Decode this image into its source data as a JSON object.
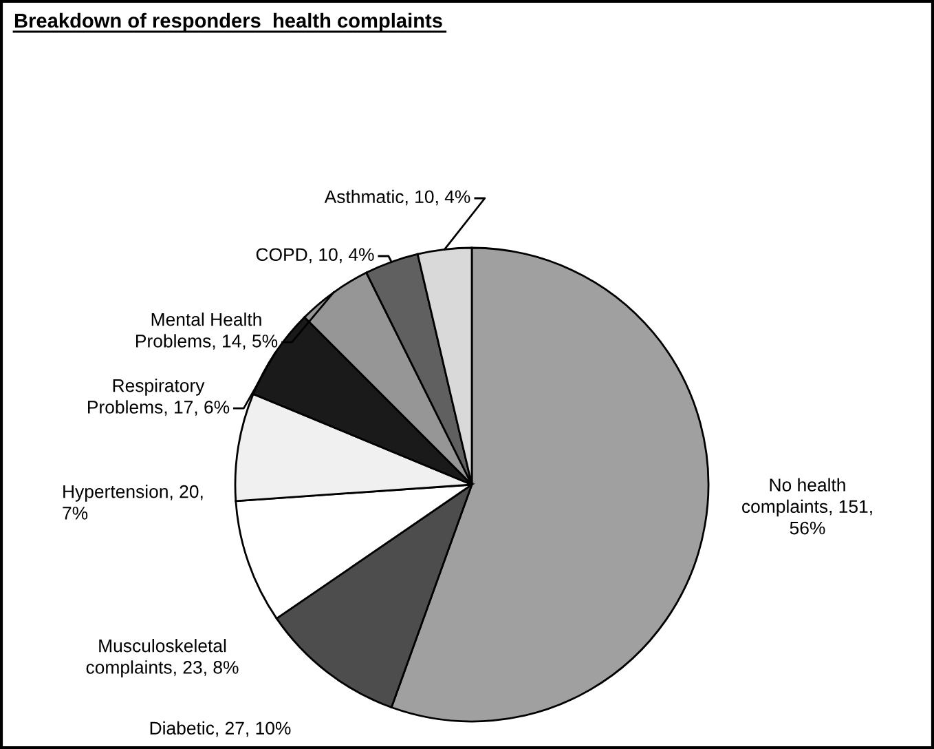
{
  "chart_data": {
    "type": "pie",
    "title": "Breakdown of responders  health complaints",
    "categories": [
      "No health\ncomplaints",
      "Diabetic",
      "Musculoskeletal\ncomplaints",
      "Hypertension",
      "Respiratory\nProblems",
      "Mental Health\nProblems",
      "COPD",
      "Asthmatic"
    ],
    "values": [
      151,
      27,
      23,
      20,
      17,
      14,
      10,
      10
    ],
    "value_labels": [
      "151,\n56%",
      "27, 10%",
      "23, 8%",
      "20,\n7%",
      "17, 6%",
      "14, 5%",
      "10, 4%",
      "10, 4%"
    ],
    "colors": [
      "#a0a0a0",
      "#4d4d4d",
      "#ffffff",
      "#f0f0f0",
      "#1a1a1a",
      "#969696",
      "#606060",
      "#d9d9d9"
    ],
    "legend": false
  }
}
